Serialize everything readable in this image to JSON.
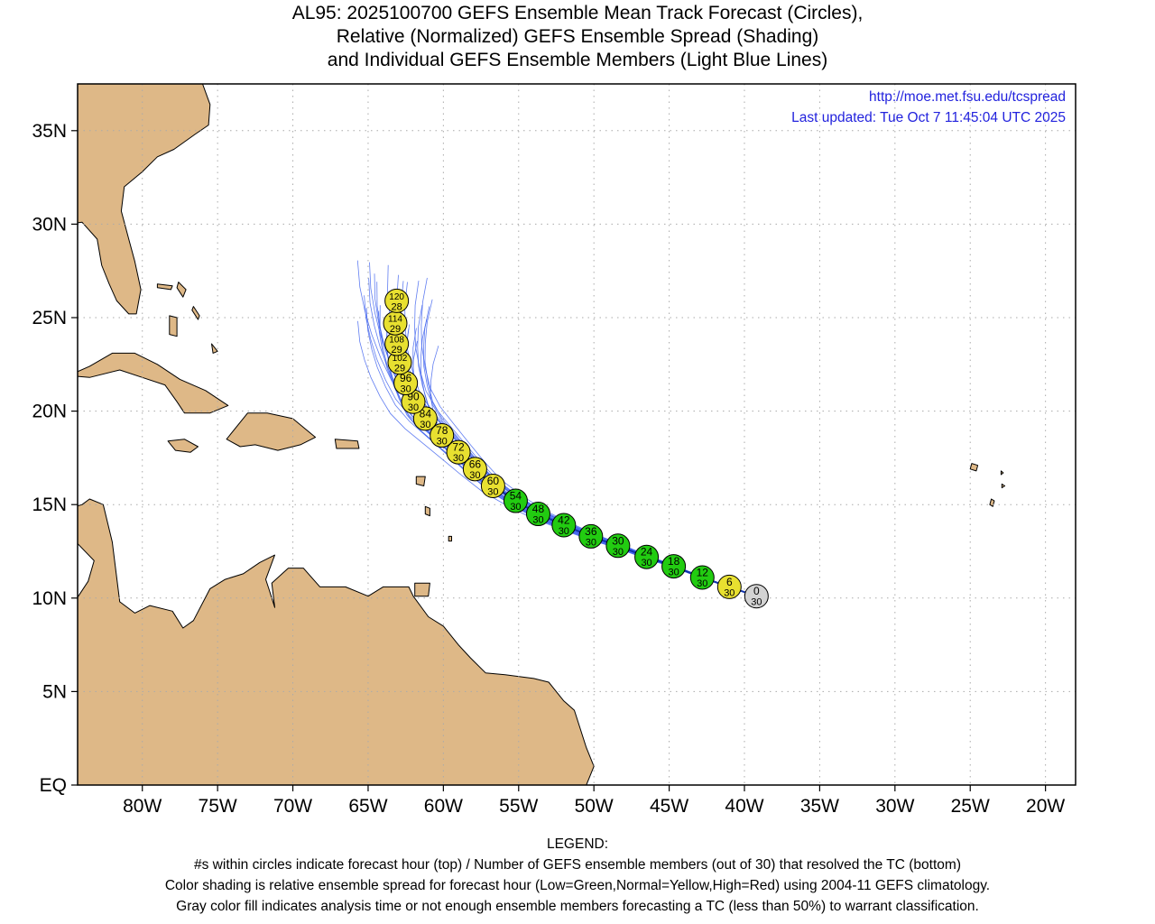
{
  "title": {
    "line1": "AL95: 2025100700 GEFS Ensemble Mean Track Forecast (Circles),",
    "line2": "Relative (Normalized) GEFS Ensemble Spread (Shading)",
    "line3": "and Individual GEFS Ensemble Members (Light Blue Lines)"
  },
  "info": {
    "url": "http://moe.met.fsu.edu/tcspread",
    "updated": "Last updated: Tue Oct 7 11:45:04 UTC 2025"
  },
  "axes": {
    "lat_labels": [
      {
        "lat": 0,
        "label": "EQ"
      },
      {
        "lat": 5,
        "label": "5N"
      },
      {
        "lat": 10,
        "label": "10N"
      },
      {
        "lat": 15,
        "label": "15N"
      },
      {
        "lat": 20,
        "label": "20N"
      },
      {
        "lat": 25,
        "label": "25N"
      },
      {
        "lat": 30,
        "label": "30N"
      },
      {
        "lat": 35,
        "label": "35N"
      }
    ],
    "lon_labels": [
      {
        "lon": -80,
        "label": "80W"
      },
      {
        "lon": -75,
        "label": "75W"
      },
      {
        "lon": -70,
        "label": "70W"
      },
      {
        "lon": -65,
        "label": "65W"
      },
      {
        "lon": -60,
        "label": "60W"
      },
      {
        "lon": -55,
        "label": "55W"
      },
      {
        "lon": -50,
        "label": "50W"
      },
      {
        "lon": -45,
        "label": "45W"
      },
      {
        "lon": -40,
        "label": "40W"
      },
      {
        "lon": -35,
        "label": "35W"
      },
      {
        "lon": -30,
        "label": "30W"
      },
      {
        "lon": -25,
        "label": "25W"
      },
      {
        "lon": -20,
        "label": "20W"
      }
    ],
    "lon_range": [
      -84.3,
      -18.0
    ],
    "lat_range": [
      0,
      37.5
    ]
  },
  "colors": {
    "land": "#deb887",
    "coast": "#000000",
    "member_line": "#4466ee",
    "spread_low": "#22cc11",
    "spread_normal": "#e8e030",
    "analysis": "#d3d3d3",
    "info_text": "#2222dd"
  },
  "track": [
    {
      "hour": "0",
      "members": "30",
      "lon": -39.2,
      "lat": 10.1,
      "spread": "analysis"
    },
    {
      "hour": "6",
      "members": "30",
      "lon": -41.0,
      "lat": 10.6,
      "spread": "normal"
    },
    {
      "hour": "12",
      "members": "30",
      "lon": -42.8,
      "lat": 11.1,
      "spread": "low"
    },
    {
      "hour": "18",
      "members": "30",
      "lon": -44.7,
      "lat": 11.7,
      "spread": "low"
    },
    {
      "hour": "24",
      "members": "30",
      "lon": -46.5,
      "lat": 12.2,
      "spread": "low"
    },
    {
      "hour": "30",
      "members": "30",
      "lon": -48.4,
      "lat": 12.8,
      "spread": "low"
    },
    {
      "hour": "36",
      "members": "30",
      "lon": -50.2,
      "lat": 13.3,
      "spread": "low"
    },
    {
      "hour": "42",
      "members": "30",
      "lon": -52.0,
      "lat": 13.9,
      "spread": "low"
    },
    {
      "hour": "48",
      "members": "30",
      "lon": -53.7,
      "lat": 14.5,
      "spread": "low"
    },
    {
      "hour": "54",
      "members": "30",
      "lon": -55.2,
      "lat": 15.2,
      "spread": "low"
    },
    {
      "hour": "60",
      "members": "30",
      "lon": -56.7,
      "lat": 16.0,
      "spread": "normal"
    },
    {
      "hour": "66",
      "members": "30",
      "lon": -57.9,
      "lat": 16.9,
      "spread": "normal"
    },
    {
      "hour": "72",
      "members": "30",
      "lon": -59.0,
      "lat": 17.8,
      "spread": "normal"
    },
    {
      "hour": "78",
      "members": "30",
      "lon": -60.1,
      "lat": 18.7,
      "spread": "normal"
    },
    {
      "hour": "84",
      "members": "30",
      "lon": -61.2,
      "lat": 19.6,
      "spread": "normal"
    },
    {
      "hour": "90",
      "members": "30",
      "lon": -62.0,
      "lat": 20.5,
      "spread": "normal"
    },
    {
      "hour": "96",
      "members": "30",
      "lon": -62.5,
      "lat": 21.5,
      "spread": "normal"
    },
    {
      "hour": "102",
      "members": "29",
      "lon": -62.9,
      "lat": 22.6,
      "spread": "normal"
    },
    {
      "hour": "108",
      "members": "29",
      "lon": -63.1,
      "lat": 23.6,
      "spread": "normal"
    },
    {
      "hour": "114",
      "members": "29",
      "lon": -63.2,
      "lat": 24.7,
      "spread": "normal"
    },
    {
      "hour": "120",
      "members": "28",
      "lon": -63.1,
      "lat": 25.9,
      "spread": "normal"
    }
  ],
  "legend": {
    "heading": "LEGEND:",
    "line1": "#s within circles indicate forecast hour (top) / Number of GEFS ensemble members (out of 30) that resolved the TC (bottom)",
    "line2": "Color shading is relative ensemble spread for forecast hour (Low=Green,Normal=Yellow,High=Red) using 2004-11 GEFS climatology.",
    "line3": "Gray color fill indicates analysis time or not enough ensemble members forecasting a TC (less than 50%) to warrant classification."
  }
}
